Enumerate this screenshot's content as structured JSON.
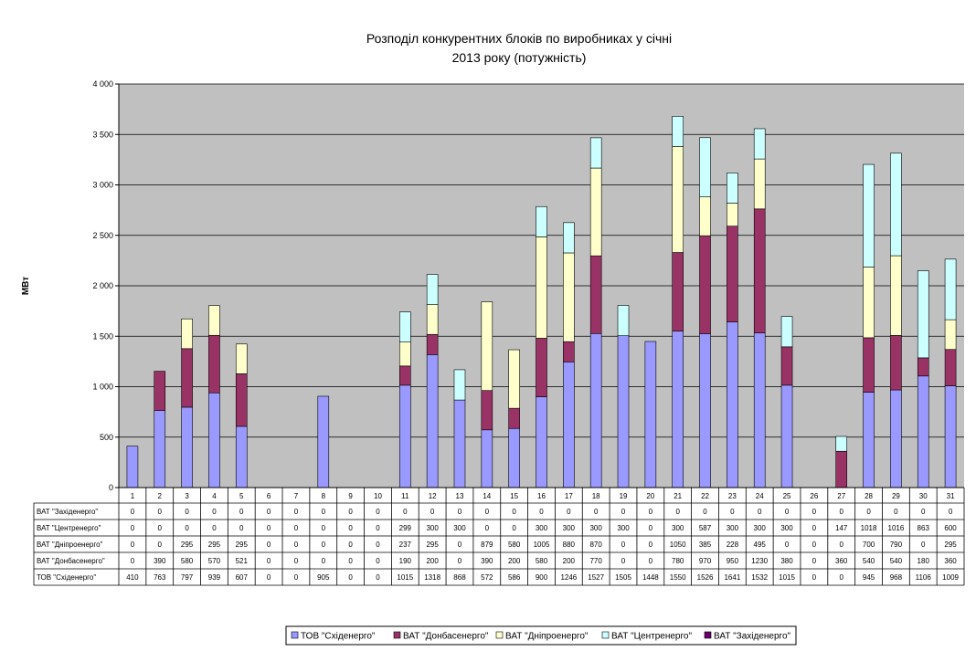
{
  "chart_data": {
    "type": "bar",
    "stacked": true,
    "title": "Розподіл конкурентних блоків по виробниках у січні 2013 року (потужність)",
    "title_lines": [
      "Розподіл конкурентних блоків по виробниках у січні",
      "2013 року (потужність)"
    ],
    "xlabel": "",
    "ylabel": "МВт",
    "ylim": [
      0,
      4000
    ],
    "yticks": [
      0,
      500,
      1000,
      1500,
      2000,
      2500,
      3000,
      3500,
      4000
    ],
    "ytick_labels": [
      "0",
      "500",
      "1 000",
      "1 500",
      "2 000",
      "2 500",
      "3 000",
      "3 500",
      "4 000"
    ],
    "grid": "horizontal",
    "legend_position": "bottom",
    "categories": [
      "1",
      "2",
      "3",
      "4",
      "5",
      "6",
      "7",
      "8",
      "9",
      "10",
      "11",
      "12",
      "13",
      "14",
      "15",
      "16",
      "17",
      "18",
      "19",
      "20",
      "21",
      "22",
      "23",
      "24",
      "25",
      "26",
      "27",
      "28",
      "29",
      "30",
      "31"
    ],
    "series": [
      {
        "name": "ТОВ \"Східенерго\"",
        "color": "#9999ff",
        "values": [
          410,
          763,
          797,
          939,
          607,
          0,
          0,
          905,
          0,
          0,
          1015,
          1318,
          868,
          572,
          586,
          900,
          1246,
          1527,
          1505,
          1448,
          1550,
          1526,
          1641,
          1532,
          1015,
          0,
          0,
          945,
          968,
          1106,
          1009
        ]
      },
      {
        "name": "ВАТ \"Донбасенерго\"",
        "color": "#993366",
        "values": [
          0,
          390,
          580,
          570,
          521,
          0,
          0,
          0,
          0,
          0,
          190,
          200,
          0,
          390,
          200,
          580,
          200,
          770,
          0,
          0,
          780,
          970,
          950,
          1230,
          380,
          0,
          360,
          540,
          540,
          180,
          360
        ]
      },
      {
        "name": "ВАТ \"Дніпроенерго\"",
        "color": "#ffffcc",
        "values": [
          0,
          0,
          295,
          295,
          295,
          0,
          0,
          0,
          0,
          0,
          237,
          295,
          0,
          879,
          580,
          1005,
          880,
          870,
          0,
          0,
          1050,
          385,
          228,
          495,
          0,
          0,
          0,
          700,
          790,
          0,
          295
        ]
      },
      {
        "name": "ВАТ \"Центренерго\"",
        "color": "#ccffff",
        "values": [
          0,
          0,
          0,
          0,
          0,
          0,
          0,
          0,
          0,
          0,
          299,
          300,
          300,
          0,
          0,
          300,
          300,
          300,
          300,
          0,
          300,
          587,
          300,
          300,
          300,
          0,
          147,
          1018,
          1016,
          863,
          600
        ]
      },
      {
        "name": "ВАТ \"Західенерго\"",
        "color": "#660066",
        "values": [
          0,
          0,
          0,
          0,
          0,
          0,
          0,
          0,
          0,
          0,
          0,
          0,
          0,
          0,
          0,
          0,
          0,
          0,
          0,
          0,
          0,
          0,
          0,
          0,
          0,
          0,
          0,
          0,
          0,
          0,
          0
        ]
      }
    ],
    "table_row_order": [
      4,
      3,
      2,
      1,
      0
    ],
    "legend_order": [
      0,
      1,
      2,
      3,
      4
    ],
    "plot_background": "#c0c0c0"
  }
}
